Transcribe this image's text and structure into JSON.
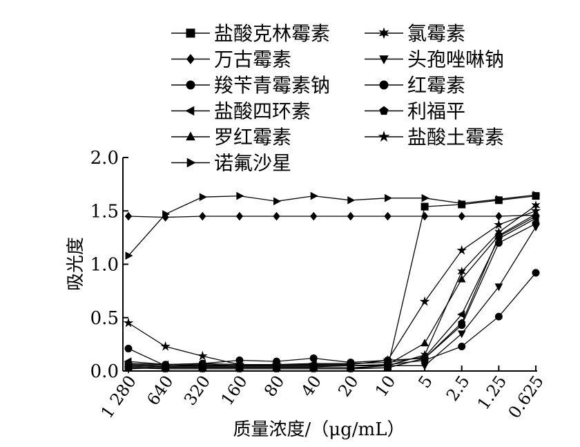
{
  "chart_data": {
    "type": "line",
    "title": "",
    "xlabel": "质量浓度/（μg/mL）",
    "ylabel": "吸光度",
    "categories": [
      "1 280",
      "640",
      "320",
      "160",
      "80",
      "40",
      "20",
      "10",
      "5",
      "2.5",
      "1.25",
      "0.625"
    ],
    "ylim": [
      0,
      2.0
    ],
    "yticks": [
      "0.0",
      "0.5",
      "1.0",
      "1.5",
      "2.0"
    ],
    "grid": false,
    "legend_position": "top",
    "series": [
      {
        "name": "盐酸克林霉素",
        "marker": "square",
        "values": [
          0.04,
          0.03,
          0.03,
          0.03,
          0.03,
          0.03,
          0.03,
          0.03,
          1.54,
          1.56,
          1.6,
          1.64
        ]
      },
      {
        "name": "氯霉素",
        "marker": "star6",
        "values": [
          0.02,
          0.03,
          0.03,
          0.03,
          0.03,
          0.03,
          0.03,
          0.05,
          0.15,
          0.93,
          1.3,
          1.55
        ]
      },
      {
        "name": "万古霉素",
        "marker": "diamond",
        "values": [
          1.45,
          1.44,
          1.45,
          1.45,
          1.45,
          1.45,
          1.45,
          1.45,
          1.45,
          1.45,
          1.45,
          1.46
        ]
      },
      {
        "name": "头孢唑啉钠",
        "marker": "triangle-down",
        "values": [
          0.05,
          0.04,
          0.04,
          0.04,
          0.04,
          0.04,
          0.05,
          0.05,
          0.05,
          0.35,
          0.79,
          1.35
        ]
      },
      {
        "name": "羧苄青霉素钠",
        "marker": "circle",
        "values": [
          0.21,
          0.05,
          0.06,
          0.05,
          0.05,
          0.05,
          0.05,
          0.06,
          0.1,
          0.23,
          0.51,
          0.92
        ]
      },
      {
        "name": "红霉素",
        "marker": "circle",
        "values": [
          0.07,
          0.06,
          0.07,
          0.1,
          0.09,
          0.12,
          0.08,
          0.1,
          0.12,
          0.43,
          1.2,
          1.38
        ]
      },
      {
        "name": "盐酸四环素",
        "marker": "triangle-left",
        "values": [
          0.09,
          0.06,
          0.07,
          0.06,
          0.06,
          0.07,
          0.07,
          0.08,
          0.13,
          0.53,
          1.24,
          1.43
        ]
      },
      {
        "name": "利福平",
        "marker": "pentagon",
        "values": [
          0.03,
          0.02,
          0.02,
          0.02,
          0.02,
          0.02,
          0.02,
          0.03,
          0.12,
          0.45,
          1.26,
          1.45
        ]
      },
      {
        "name": "罗红霉素",
        "marker": "triangle-up",
        "values": [
          0.06,
          0.05,
          0.05,
          0.05,
          0.05,
          0.05,
          0.05,
          0.06,
          0.26,
          0.86,
          1.27,
          1.47
        ]
      },
      {
        "name": "盐酸土霉素",
        "marker": "star",
        "values": [
          0.45,
          0.23,
          0.14,
          0.06,
          0.06,
          0.06,
          0.06,
          0.1,
          0.65,
          1.13,
          1.37,
          1.5
        ]
      },
      {
        "name": "诺氟沙星",
        "marker": "triangle-right",
        "values": [
          1.08,
          1.47,
          1.63,
          1.64,
          1.59,
          1.64,
          1.6,
          1.62,
          1.62,
          1.57,
          1.61,
          1.65
        ]
      }
    ]
  }
}
